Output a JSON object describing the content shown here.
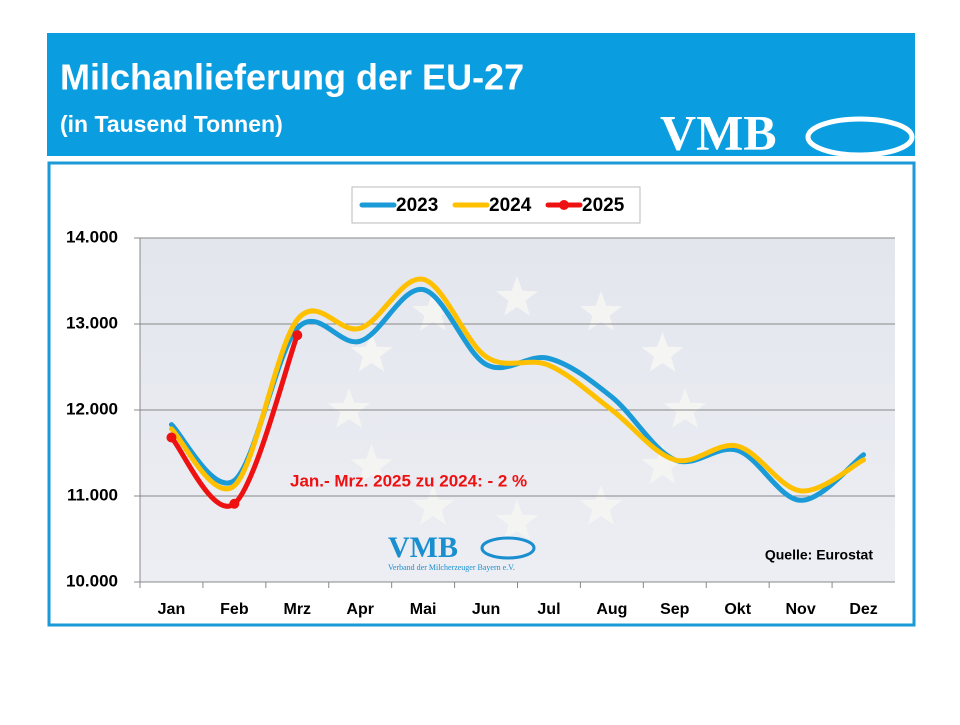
{
  "header": {
    "title": "Milchanlieferung der EU-27",
    "subtitle": "(in Tausend Tonnen)",
    "logo": "VMB"
  },
  "chart_data": {
    "type": "line",
    "categories": [
      "Jan",
      "Feb",
      "Mrz",
      "Apr",
      "Mai",
      "Jun",
      "Jul",
      "Aug",
      "Sep",
      "Okt",
      "Nov",
      "Dez"
    ],
    "series": [
      {
        "name": "2023",
        "color": "#1a9ad6",
        "values": [
          11830,
          11180,
          12950,
          12800,
          13400,
          12530,
          12600,
          12150,
          11420,
          11530,
          10950,
          11480
        ]
      },
      {
        "name": "2024",
        "color": "#ffc000",
        "values": [
          11780,
          11120,
          13050,
          12950,
          13520,
          12620,
          12520,
          12000,
          11420,
          11580,
          11060,
          11420
        ]
      },
      {
        "name": "2025",
        "color": "#ee1111",
        "values": [
          11680,
          10910,
          12870,
          null,
          null,
          null,
          null,
          null,
          null,
          null,
          null,
          null
        ]
      }
    ],
    "ylim": [
      10000,
      14000
    ],
    "yticks": [
      {
        "value": 10000,
        "label": "10.000"
      },
      {
        "value": 11000,
        "label": "11.000"
      },
      {
        "value": 12000,
        "label": "12.000"
      },
      {
        "value": 13000,
        "label": "13.000"
      },
      {
        "value": 14000,
        "label": "14.000"
      }
    ],
    "grid": true,
    "legend": "top",
    "annotation": "Jan.- Mrz. 2025 zu 2024: - 2 %",
    "source": "Quelle: Eurostat",
    "watermark": {
      "logo": "VMB",
      "text": "Verband der Milcherzeuger Bayern e.V."
    }
  }
}
